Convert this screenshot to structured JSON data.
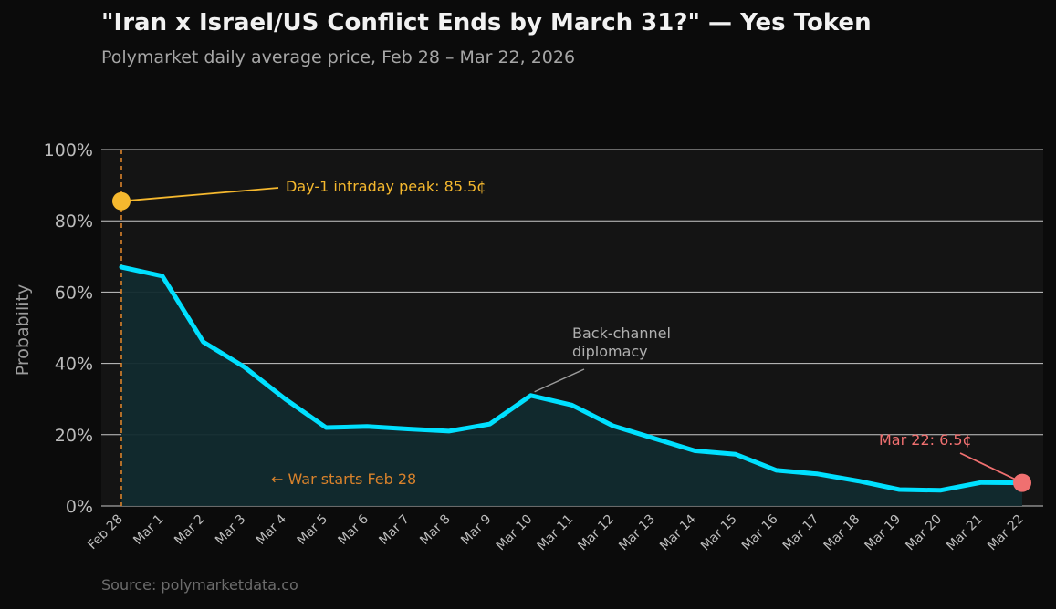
{
  "header": {
    "title": "\"Iran x Israel/US Conflict Ends by March 31?\" — Yes Token",
    "subtitle": "Polymarket daily average price, Feb 28 – Mar 22, 2026"
  },
  "footer": {
    "source": "Source: polymarketdata.co"
  },
  "colors": {
    "background": "#0b0b0b",
    "plot_background": "#141414",
    "line": "#00e0ff",
    "area_fill": "#112a2e",
    "peak_marker": "#f5b82e",
    "end_marker": "#f07070",
    "war_start": "#d9822b",
    "annotation_gray": "#b0b0b0"
  },
  "chart_data": {
    "type": "area",
    "title": "\"Iran x Israel/US Conflict Ends by March 31?\" — Yes Token",
    "subtitle": "Polymarket daily average price, Feb 28 – Mar 22, 2026",
    "xlabel": "",
    "ylabel": "Probability",
    "x": [
      "Feb 28",
      "Mar 1",
      "Mar 2",
      "Mar 3",
      "Mar 4",
      "Mar 5",
      "Mar 6",
      "Mar 7",
      "Mar 8",
      "Mar 9",
      "Mar 10",
      "Mar 11",
      "Mar 12",
      "Mar 13",
      "Mar 14",
      "Mar 15",
      "Mar 16",
      "Mar 17",
      "Mar 18",
      "Mar 19",
      "Mar 20",
      "Mar 21",
      "Mar 22"
    ],
    "series": [
      {
        "values": [
          67,
          64.5,
          46,
          39,
          30,
          22,
          22.3,
          21.6,
          21,
          23,
          31,
          28.3,
          22.5,
          19,
          15.5,
          14.5,
          10,
          9,
          7,
          4.6,
          4.4,
          6.6,
          6.5
        ]
      }
    ],
    "ylim": [
      0,
      100
    ],
    "yticks": [
      0,
      20,
      40,
      60,
      80,
      100
    ],
    "ytick_labels": [
      "0%",
      "20%",
      "40%",
      "60%",
      "80%",
      "100%"
    ],
    "grid": "horizontal",
    "annotations": {
      "peak": {
        "x": "Feb 28",
        "value": 85.5,
        "label": "Day-1 intraday peak: 85.5¢"
      },
      "backchannel": {
        "x": "Mar 10",
        "line1": "Back-channel",
        "line2": "diplomacy"
      },
      "end": {
        "x": "Mar 22",
        "value": 6.5,
        "label": "Mar 22: 6.5¢"
      },
      "war_start": {
        "x": "Feb 28",
        "label": "← War starts Feb 28"
      }
    }
  }
}
